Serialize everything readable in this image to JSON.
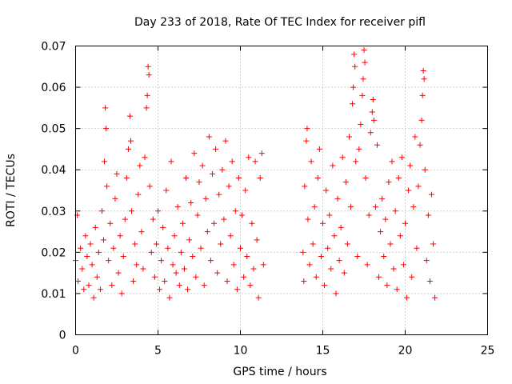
{
  "chart_data": {
    "type": "scatter",
    "title": "Day 233 of 2018, Rate Of TEC Index for receiver pifl",
    "xlabel": "GPS time / hours",
    "ylabel": "ROTI / TECUs",
    "xlim": [
      0,
      25
    ],
    "ylim": [
      0,
      0.07
    ],
    "xticks": [
      0,
      5,
      10,
      15,
      20,
      25
    ],
    "xtick_labels": [
      "0",
      "5",
      "10",
      "15",
      "20",
      "25"
    ],
    "yticks": [
      0,
      0.01,
      0.02,
      0.03,
      0.04,
      0.05,
      0.06,
      0.07
    ],
    "ytick_labels": [
      "0",
      "0.01",
      "0.02",
      "0.03",
      "0.04",
      "0.05",
      "0.06",
      "0.07"
    ],
    "grid": true,
    "marker": "plus",
    "color": "#ff0000",
    "series": [
      {
        "points": [
          [
            0.0,
            0.018
          ],
          [
            0.1,
            0.029
          ],
          [
            0.15,
            0.013
          ],
          [
            0.3,
            0.021
          ],
          [
            0.4,
            0.016
          ],
          [
            0.5,
            0.011
          ],
          [
            0.6,
            0.024
          ],
          [
            0.7,
            0.019
          ],
          [
            0.8,
            0.012
          ],
          [
            0.9,
            0.022
          ],
          [
            1.0,
            0.017
          ],
          [
            1.1,
            0.009
          ],
          [
            1.2,
            0.026
          ],
          [
            1.3,
            0.014
          ],
          [
            1.4,
            0.02
          ],
          [
            1.5,
            0.011
          ],
          [
            1.6,
            0.03
          ],
          [
            1.7,
            0.023
          ],
          [
            1.75,
            0.042
          ],
          [
            1.8,
            0.055
          ],
          [
            1.85,
            0.05
          ],
          [
            1.9,
            0.036
          ],
          [
            2.0,
            0.018
          ],
          [
            2.1,
            0.027
          ],
          [
            2.2,
            0.012
          ],
          [
            2.3,
            0.021
          ],
          [
            2.4,
            0.033
          ],
          [
            2.5,
            0.039
          ],
          [
            2.6,
            0.015
          ],
          [
            2.7,
            0.024
          ],
          [
            2.8,
            0.01
          ],
          [
            2.9,
            0.019
          ],
          [
            3.0,
            0.028
          ],
          [
            3.1,
            0.038
          ],
          [
            3.2,
            0.045
          ],
          [
            3.3,
            0.053
          ],
          [
            3.35,
            0.047
          ],
          [
            3.4,
            0.03
          ],
          [
            3.5,
            0.013
          ],
          [
            3.6,
            0.022
          ],
          [
            3.7,
            0.017
          ],
          [
            3.8,
            0.034
          ],
          [
            3.9,
            0.041
          ],
          [
            4.0,
            0.025
          ],
          [
            4.1,
            0.016
          ],
          [
            4.2,
            0.043
          ],
          [
            4.3,
            0.055
          ],
          [
            4.35,
            0.058
          ],
          [
            4.4,
            0.065
          ],
          [
            4.45,
            0.063
          ],
          [
            4.5,
            0.036
          ],
          [
            4.6,
            0.02
          ],
          [
            4.7,
            0.028
          ],
          [
            4.8,
            0.014
          ],
          [
            4.9,
            0.022
          ],
          [
            5.0,
            0.03
          ],
          [
            5.1,
            0.011
          ],
          [
            5.2,
            0.018
          ],
          [
            5.3,
            0.026
          ],
          [
            5.4,
            0.013
          ],
          [
            5.5,
            0.035
          ],
          [
            5.6,
            0.021
          ],
          [
            5.7,
            0.009
          ],
          [
            5.8,
            0.042
          ],
          [
            5.9,
            0.017
          ],
          [
            6.0,
            0.024
          ],
          [
            6.1,
            0.015
          ],
          [
            6.2,
            0.031
          ],
          [
            6.3,
            0.012
          ],
          [
            6.4,
            0.02
          ],
          [
            6.5,
            0.027
          ],
          [
            6.6,
            0.016
          ],
          [
            6.7,
            0.038
          ],
          [
            6.8,
            0.011
          ],
          [
            6.9,
            0.023
          ],
          [
            7.0,
            0.032
          ],
          [
            7.1,
            0.019
          ],
          [
            7.2,
            0.044
          ],
          [
            7.3,
            0.014
          ],
          [
            7.4,
            0.029
          ],
          [
            7.5,
            0.037
          ],
          [
            7.6,
            0.021
          ],
          [
            7.7,
            0.041
          ],
          [
            7.8,
            0.012
          ],
          [
            7.9,
            0.033
          ],
          [
            8.0,
            0.025
          ],
          [
            8.1,
            0.048
          ],
          [
            8.2,
            0.018
          ],
          [
            8.3,
            0.039
          ],
          [
            8.4,
            0.027
          ],
          [
            8.5,
            0.045
          ],
          [
            8.6,
            0.015
          ],
          [
            8.7,
            0.034
          ],
          [
            8.8,
            0.022
          ],
          [
            8.9,
            0.04
          ],
          [
            9.0,
            0.028
          ],
          [
            9.1,
            0.047
          ],
          [
            9.2,
            0.013
          ],
          [
            9.3,
            0.036
          ],
          [
            9.4,
            0.024
          ],
          [
            9.5,
            0.042
          ],
          [
            9.6,
            0.017
          ],
          [
            9.7,
            0.03
          ],
          [
            9.8,
            0.011
          ],
          [
            9.9,
            0.038
          ],
          [
            10.0,
            0.021
          ],
          [
            10.1,
            0.029
          ],
          [
            10.2,
            0.014
          ],
          [
            10.3,
            0.035
          ],
          [
            10.4,
            0.019
          ],
          [
            10.5,
            0.043
          ],
          [
            10.6,
            0.012
          ],
          [
            10.7,
            0.027
          ],
          [
            10.8,
            0.016
          ],
          [
            10.9,
            0.042
          ],
          [
            11.0,
            0.023
          ],
          [
            11.1,
            0.009
          ],
          [
            11.2,
            0.038
          ],
          [
            11.3,
            0.044
          ],
          [
            11.4,
            0.017
          ],
          [
            13.8,
            0.02
          ],
          [
            13.85,
            0.013
          ],
          [
            13.9,
            0.036
          ],
          [
            14.0,
            0.047
          ],
          [
            14.05,
            0.05
          ],
          [
            14.1,
            0.028
          ],
          [
            14.2,
            0.017
          ],
          [
            14.3,
            0.042
          ],
          [
            14.4,
            0.022
          ],
          [
            14.5,
            0.031
          ],
          [
            14.6,
            0.014
          ],
          [
            14.7,
            0.038
          ],
          [
            14.8,
            0.045
          ],
          [
            14.9,
            0.019
          ],
          [
            15.0,
            0.027
          ],
          [
            15.1,
            0.012
          ],
          [
            15.2,
            0.035
          ],
          [
            15.3,
            0.021
          ],
          [
            15.4,
            0.029
          ],
          [
            15.5,
            0.016
          ],
          [
            15.6,
            0.041
          ],
          [
            15.7,
            0.024
          ],
          [
            15.8,
            0.01
          ],
          [
            15.9,
            0.033
          ],
          [
            16.0,
            0.018
          ],
          [
            16.1,
            0.026
          ],
          [
            16.2,
            0.043
          ],
          [
            16.3,
            0.015
          ],
          [
            16.4,
            0.037
          ],
          [
            16.5,
            0.022
          ],
          [
            16.6,
            0.048
          ],
          [
            16.7,
            0.031
          ],
          [
            16.8,
            0.056
          ],
          [
            16.85,
            0.06
          ],
          [
            16.9,
            0.068
          ],
          [
            16.95,
            0.065
          ],
          [
            17.0,
            0.042
          ],
          [
            17.1,
            0.019
          ],
          [
            17.2,
            0.045
          ],
          [
            17.3,
            0.051
          ],
          [
            17.4,
            0.058
          ],
          [
            17.45,
            0.062
          ],
          [
            17.5,
            0.069
          ],
          [
            17.55,
            0.066
          ],
          [
            17.6,
            0.038
          ],
          [
            17.7,
            0.017
          ],
          [
            17.8,
            0.029
          ],
          [
            17.9,
            0.049
          ],
          [
            18.0,
            0.054
          ],
          [
            18.05,
            0.057
          ],
          [
            18.1,
            0.052
          ],
          [
            18.2,
            0.031
          ],
          [
            18.3,
            0.046
          ],
          [
            18.4,
            0.014
          ],
          [
            18.5,
            0.025
          ],
          [
            18.6,
            0.033
          ],
          [
            18.7,
            0.019
          ],
          [
            18.8,
            0.028
          ],
          [
            18.9,
            0.012
          ],
          [
            19.0,
            0.037
          ],
          [
            19.1,
            0.022
          ],
          [
            19.2,
            0.042
          ],
          [
            19.3,
            0.016
          ],
          [
            19.4,
            0.03
          ],
          [
            19.5,
            0.011
          ],
          [
            19.6,
            0.038
          ],
          [
            19.7,
            0.024
          ],
          [
            19.8,
            0.043
          ],
          [
            19.9,
            0.017
          ],
          [
            20.0,
            0.027
          ],
          [
            20.1,
            0.009
          ],
          [
            20.2,
            0.035
          ],
          [
            20.3,
            0.041
          ],
          [
            20.4,
            0.014
          ],
          [
            20.5,
            0.031
          ],
          [
            20.6,
            0.048
          ],
          [
            20.7,
            0.021
          ],
          [
            20.8,
            0.036
          ],
          [
            20.9,
            0.046
          ],
          [
            21.0,
            0.052
          ],
          [
            21.05,
            0.058
          ],
          [
            21.1,
            0.064
          ],
          [
            21.15,
            0.062
          ],
          [
            21.2,
            0.04
          ],
          [
            21.3,
            0.018
          ],
          [
            21.4,
            0.029
          ],
          [
            21.5,
            0.013
          ],
          [
            21.6,
            0.034
          ],
          [
            21.7,
            0.022
          ],
          [
            21.8,
            0.009
          ]
        ]
      }
    ]
  }
}
